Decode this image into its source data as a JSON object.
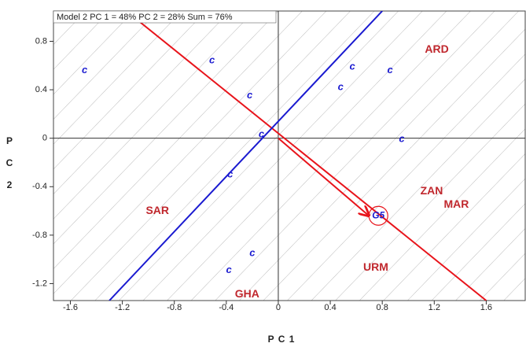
{
  "chart_data": {
    "type": "biplot",
    "title": "Model 2 PC 1 = 48% PC 2 = 28% Sum = 76%",
    "x_label": "P C 1",
    "y_label": "P C 2",
    "xlim": [
      -1.73,
      1.9
    ],
    "ylim": [
      -1.34,
      1.05
    ],
    "xticks": [
      -1.6,
      -1.2,
      -0.8,
      -0.4,
      0,
      0.4,
      0.8,
      1.2,
      1.6
    ],
    "yticks": [
      0.8,
      0.4,
      0,
      -0.4,
      -0.8,
      -1.2
    ],
    "genotypes": {
      "color": "#1a1ad0",
      "labels": [
        "c",
        "c",
        "c",
        "c",
        "c",
        "c",
        "c",
        "c",
        "c",
        "c",
        "c"
      ],
      "x": [
        -1.49,
        -0.51,
        -0.22,
        -0.13,
        0.57,
        0.48,
        0.86,
        0.95,
        -0.37,
        -0.2,
        -0.38
      ],
      "y": [
        0.56,
        0.64,
        0.35,
        0.03,
        0.59,
        0.42,
        0.56,
        -0.01,
        -0.3,
        -0.95,
        -1.09
      ]
    },
    "highlight": {
      "label": "G5",
      "x": 0.77,
      "y": -0.64,
      "color": "#e8141b"
    },
    "environments": {
      "color": "#c0272d",
      "labels": [
        "ARD",
        "SAR",
        "ZAN",
        "MAR",
        "URM",
        "GHA"
      ],
      "x": [
        1.22,
        -0.93,
        1.18,
        1.37,
        0.75,
        -0.24
      ],
      "y": [
        0.73,
        -0.6,
        -0.44,
        -0.55,
        -1.07,
        -1.29
      ]
    },
    "lines": [
      {
        "color": "#e8141b",
        "x": [
          -1.17,
          1.6
        ],
        "y": [
          1.05,
          -1.34
        ]
      },
      {
        "color": "#1a1ad0",
        "x": [
          -1.3,
          0.8
        ],
        "y": [
          -1.34,
          1.05
        ]
      }
    ]
  }
}
